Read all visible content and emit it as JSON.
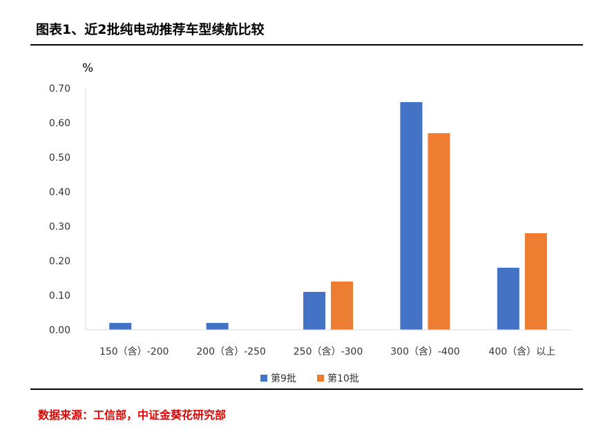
{
  "title": "图表1、近2批纯电动推荐车型续航比较",
  "source": "数据来源：工信部，中证金葵花研究部",
  "chart_data": {
    "type": "bar",
    "categories": [
      "150（含）-200",
      "200（含）-250",
      "250（含）-300",
      "300（含）-400",
      "400（含）以上"
    ],
    "series": [
      {
        "name": "第9批",
        "values": [
          0.02,
          0.02,
          0.11,
          0.66,
          0.18
        ],
        "color": "#4472C4"
      },
      {
        "name": "第10批",
        "values": [
          0.0,
          0.0,
          0.14,
          0.57,
          0.28
        ],
        "color": "#ED7D31"
      }
    ],
    "ylabel": "%",
    "ylim": [
      0,
      0.7
    ],
    "yticks": [
      "0.00",
      "0.10",
      "0.20",
      "0.30",
      "0.40",
      "0.50",
      "0.60",
      "0.70"
    ],
    "legend": "bottom",
    "grid": false
  }
}
